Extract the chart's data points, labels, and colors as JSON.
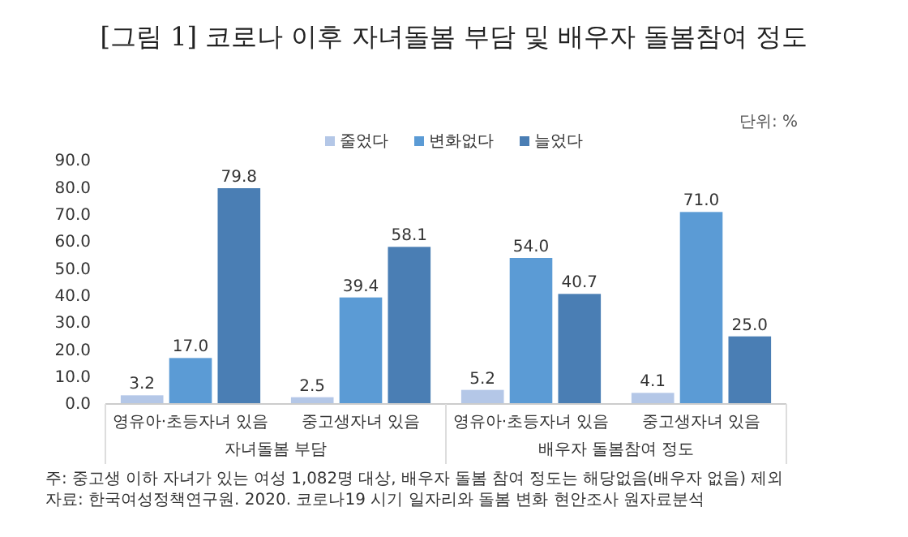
{
  "chart_data": {
    "type": "bar",
    "title": "[그림 1] 코로나 이후 자녀돌봄 부담 및 배우자 돌봄참여 정도",
    "categories": [
      "영유아·초등자녀 있음",
      "중고생자녀 있음",
      "영유아·초등자녀 있음",
      "중고생자녀 있음"
    ],
    "series": [
      {
        "name": "줄었다",
        "color": "#b4c7e7",
        "values": [
          3.2,
          2.5,
          5.2,
          4.1
        ]
      },
      {
        "name": "변화없다",
        "color": "#5b9bd5",
        "values": [
          17.0,
          39.4,
          54.0,
          71.0
        ]
      },
      {
        "name": "늘었다",
        "color": "#4a7eb4",
        "values": [
          79.8,
          58.1,
          40.7,
          25.0
        ]
      }
    ],
    "ylim": [
      0,
      90
    ],
    "yticks": [
      {
        "value": 0,
        "label": "0.0"
      },
      {
        "value": 10,
        "label": "10.0"
      },
      {
        "value": 20,
        "label": "20.0"
      },
      {
        "value": 30,
        "label": "30.0"
      },
      {
        "value": 40,
        "label": "40.0"
      },
      {
        "value": 50,
        "label": "50.0"
      },
      {
        "value": 60,
        "label": "60.0"
      },
      {
        "value": 70,
        "label": "70.0"
      },
      {
        "value": 80,
        "label": "80.0"
      },
      {
        "value": 90,
        "label": "90.0"
      }
    ],
    "value_labels": [
      [
        "3.2",
        "2.5",
        "5.2",
        "4.1"
      ],
      [
        "17.0",
        "39.4",
        "54.0",
        "71.0"
      ],
      [
        "79.8",
        "58.1",
        "40.7",
        "25.0"
      ]
    ],
    "legend": "top",
    "grid": false,
    "annotations": [
      "자녀돌봄 부담",
      "배우자 돌봄참여 정도",
      "단위: %",
      "주: 중고생 이하 자녀가 있는 여성 1,082명 대상, 배우자 돌봄 참여 정도는 해당없음(배우자 없음) 제외",
      "자료: 한국여성정책연구원. 2020. 코로나19 시기 일자리와 돌봄 변화 현안조사 원자료분석"
    ]
  }
}
